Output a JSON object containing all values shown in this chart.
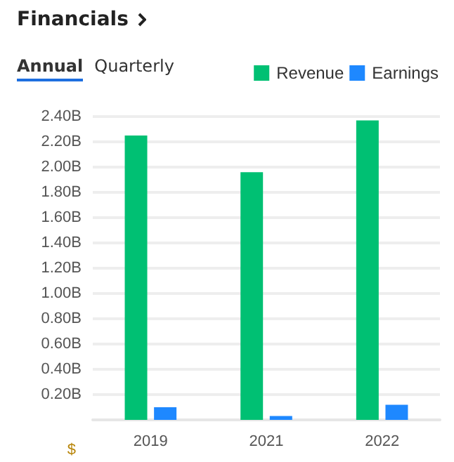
{
  "chart_data": {
    "type": "bar",
    "title": "Financials",
    "annotations": [
      "Annual",
      "Quarterly"
    ],
    "ylabel": "$",
    "categories": [
      "2019",
      "2021",
      "2022"
    ],
    "series": [
      {
        "name": "Revenue",
        "color": "#00c073",
        "values": [
          2.25,
          1.96,
          2.37
        ]
      },
      {
        "name": "Earnings",
        "color": "#1e88ff",
        "values": [
          0.1,
          0.03,
          0.12
        ]
      }
    ],
    "ylim": [
      0,
      2.4
    ],
    "yticks": [
      {
        "value": 0.2,
        "label": "0.20B"
      },
      {
        "value": 0.4,
        "label": "0.40B"
      },
      {
        "value": 0.6,
        "label": "0.60B"
      },
      {
        "value": 0.8,
        "label": "0.80B"
      },
      {
        "value": 1.0,
        "label": "1.00B"
      },
      {
        "value": 1.2,
        "label": "1.20B"
      },
      {
        "value": 1.4,
        "label": "1.40B"
      },
      {
        "value": 1.6,
        "label": "1.60B"
      },
      {
        "value": 1.8,
        "label": "1.80B"
      },
      {
        "value": 2.0,
        "label": "2.00B"
      },
      {
        "value": 2.2,
        "label": "2.20B"
      },
      {
        "value": 2.4,
        "label": "2.40B"
      }
    ],
    "grid": "y",
    "legend": "top right"
  }
}
